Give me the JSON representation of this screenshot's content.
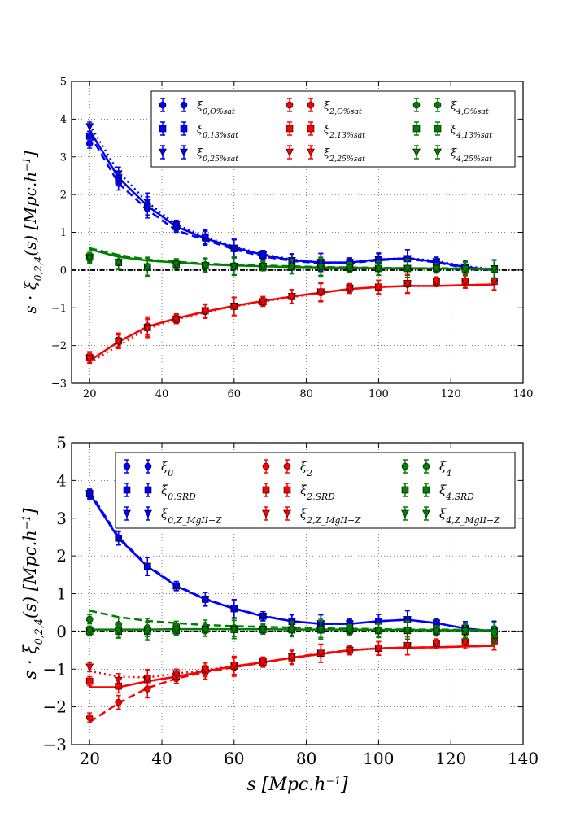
{
  "chart_data": [
    {
      "type": "line",
      "title": "",
      "xlabel": "",
      "ylabel_main": "s · ξ",
      "ylabel_sub": "0,2,4",
      "ylabel_rest": "(s) [Mpc.h",
      "ylabel_sup": "−1",
      "ylabel_end": "]",
      "xlim": [
        15,
        140
      ],
      "ylim": [
        -3,
        5
      ],
      "xticks": [
        20,
        40,
        60,
        80,
        100,
        120,
        140
      ],
      "yticks": [
        -3,
        -2,
        -1,
        0,
        1,
        2,
        3,
        4,
        5
      ],
      "xtick_labels": [
        "20",
        "40",
        "60",
        "80",
        "100",
        "120",
        "140"
      ],
      "ytick_labels": [
        "−3",
        "−2",
        "−1",
        "0",
        "1",
        "2",
        "3",
        "4",
        "5"
      ],
      "grid": true,
      "legend_position": "top-right",
      "x": [
        20,
        28,
        36,
        44,
        52,
        60,
        68,
        76,
        84,
        92,
        100,
        108,
        116,
        124,
        132
      ],
      "series": [
        {
          "name": "ξ",
          "sub": "0,O%sat",
          "color": "#0000ff",
          "marker": "circle",
          "linestyle": "solid",
          "errors": true,
          "values": [
            3.35,
            2.3,
            1.62,
            1.12,
            0.84,
            0.56,
            0.4,
            0.24,
            0.2,
            0.2,
            0.25,
            0.3,
            0.22,
            0.08,
            0.03
          ]
        },
        {
          "name": "ξ",
          "sub": "0,13%sat",
          "color": "#0000ff",
          "marker": "square",
          "linestyle": "dashed",
          "errors": true,
          "values": [
            3.55,
            2.42,
            1.7,
            1.15,
            0.86,
            0.57,
            0.39,
            0.25,
            0.2,
            0.2,
            0.27,
            0.3,
            0.22,
            0.08,
            0.03
          ]
        },
        {
          "name": "ξ",
          "sub": "0,25%sat",
          "color": "#0000ff",
          "marker": "triangle",
          "linestyle": "dotted",
          "errors": true,
          "values": [
            3.8,
            2.55,
            1.8,
            1.2,
            0.88,
            0.58,
            0.4,
            0.25,
            0.2,
            0.2,
            0.27,
            0.3,
            0.22,
            0.08,
            0.03
          ]
        },
        {
          "name": "ξ",
          "sub": "2,O%sat",
          "color": "#ff0000",
          "marker": "circle",
          "linestyle": "solid",
          "errors": true,
          "values": [
            -2.28,
            -1.85,
            -1.48,
            -1.28,
            -1.1,
            -0.97,
            -0.82,
            -0.7,
            -0.6,
            -0.5,
            -0.45,
            -0.38,
            -0.32,
            -0.28,
            -0.28
          ]
        },
        {
          "name": "ξ",
          "sub": "2,13%sat",
          "color": "#ff0000",
          "marker": "square",
          "linestyle": "dashed",
          "errors": true,
          "values": [
            -2.32,
            -1.88,
            -1.52,
            -1.3,
            -1.08,
            -0.96,
            -0.84,
            -0.7,
            -0.58,
            -0.48,
            -0.45,
            -0.36,
            -0.3,
            -0.3,
            -0.3
          ]
        },
        {
          "name": "ξ",
          "sub": "2,25%sat",
          "color": "#ff0000",
          "marker": "triangle",
          "linestyle": "dotted",
          "errors": true,
          "values": [
            -2.35,
            -1.9,
            -1.55,
            -1.3,
            -1.08,
            -0.96,
            -0.84,
            -0.7,
            -0.58,
            -0.48,
            -0.45,
            -0.36,
            -0.3,
            -0.3,
            -0.3
          ]
        },
        {
          "name": "ξ",
          "sub": "4,O%sat",
          "color": "#008000",
          "marker": "circle",
          "linestyle": "solid",
          "errors": true,
          "values": [
            0.3,
            0.22,
            0.1,
            0.18,
            0.14,
            0.12,
            0.12,
            0.1,
            0.1,
            0.08,
            0.05,
            0.05,
            0.05,
            0.04,
            0.02
          ]
        },
        {
          "name": "ξ",
          "sub": "4,13%sat",
          "color": "#008000",
          "marker": "square",
          "linestyle": "dashed",
          "errors": true,
          "values": [
            0.35,
            0.2,
            0.08,
            0.15,
            0.12,
            0.1,
            0.1,
            0.08,
            0.08,
            0.06,
            0.04,
            0.04,
            0.04,
            0.03,
            0.02
          ]
        },
        {
          "name": "ξ",
          "sub": "4,25%sat",
          "color": "#008000",
          "marker": "triangle",
          "linestyle": "dotted",
          "errors": true,
          "values": [
            0.32,
            0.2,
            0.08,
            0.15,
            0.12,
            0.1,
            0.1,
            0.08,
            0.08,
            0.06,
            0.04,
            0.04,
            0.04,
            0.03,
            0.02
          ]
        }
      ],
      "model_curves": [
        {
          "name": "ξ0 model solid",
          "color": "#0000ff",
          "linestyle": "solid",
          "values": [
            3.7,
            2.45,
            1.7,
            1.15,
            0.84,
            0.6,
            0.4,
            0.26,
            0.2,
            0.2,
            0.28,
            0.31,
            0.22,
            0.08,
            0.0
          ]
        },
        {
          "name": "ξ0 model dashed",
          "color": "#0000ff",
          "linestyle": "dashed",
          "values": [
            3.6,
            2.3,
            1.6,
            1.05,
            0.8,
            0.55,
            0.36,
            0.24,
            0.18,
            0.18,
            0.26,
            0.3,
            0.2,
            0.06,
            0.0
          ]
        },
        {
          "name": "ξ0 model dotted",
          "color": "#0000ff",
          "linestyle": "dotted",
          "values": [
            3.85,
            2.6,
            1.8,
            1.2,
            0.88,
            0.62,
            0.42,
            0.28,
            0.2,
            0.2,
            0.28,
            0.32,
            0.24,
            0.1,
            0.02
          ]
        },
        {
          "name": "ξ2 model solid",
          "color": "#ff0000",
          "linestyle": "solid",
          "values": [
            -2.4,
            -1.9,
            -1.5,
            -1.28,
            -1.1,
            -0.95,
            -0.82,
            -0.7,
            -0.6,
            -0.5,
            -0.45,
            -0.42,
            -0.42,
            -0.4,
            -0.38
          ]
        },
        {
          "name": "ξ2 model dotted",
          "color": "#ff0000",
          "linestyle": "dotted",
          "values": [
            -2.45,
            -2.0,
            -1.55,
            -1.3,
            -1.12,
            -0.96,
            -0.84,
            -0.72,
            -0.6,
            -0.5,
            -0.45,
            -0.42,
            -0.42,
            -0.4,
            -0.38
          ]
        },
        {
          "name": "ξ4 model solid",
          "color": "#008000",
          "linestyle": "solid",
          "values": [
            0.55,
            0.35,
            0.25,
            0.2,
            0.15,
            0.12,
            0.1,
            0.08,
            0.07,
            0.06,
            0.05,
            0.05,
            0.04,
            0.03,
            0.03
          ]
        },
        {
          "name": "ξ4 model dashed",
          "color": "#008000",
          "linestyle": "dashed",
          "values": [
            0.58,
            0.4,
            0.28,
            0.22,
            0.17,
            0.14,
            0.12,
            0.1,
            0.08,
            0.07,
            0.06,
            0.05,
            0.05,
            0.04,
            0.03
          ]
        }
      ],
      "zero_line": true
    },
    {
      "type": "line",
      "title": "",
      "xlabel_main": "s [Mpc.h",
      "xlabel_sup": "−1",
      "xlabel_end": "]",
      "ylabel_main": "s · ξ",
      "ylabel_sub": "0,2,4",
      "ylabel_rest": "(s) [Mpc.h",
      "ylabel_sup": "−1",
      "ylabel_end": "]",
      "xlim": [
        15,
        140
      ],
      "ylim": [
        -3,
        5
      ],
      "xticks": [
        20,
        40,
        60,
        80,
        100,
        120,
        140
      ],
      "yticks": [
        -3,
        -2,
        -1,
        0,
        1,
        2,
        3,
        4,
        5
      ],
      "xtick_labels": [
        "20",
        "40",
        "60",
        "80",
        "100",
        "120",
        "140"
      ],
      "ytick_labels": [
        "−3",
        "−2",
        "−1",
        "0",
        "1",
        "2",
        "3",
        "4",
        "5"
      ],
      "grid": true,
      "legend_position": "top-right",
      "x": [
        20,
        28,
        36,
        44,
        52,
        60,
        68,
        76,
        84,
        92,
        100,
        108,
        116,
        124,
        132
      ],
      "series": [
        {
          "name": "ξ",
          "sub": "0",
          "color": "#0000ff",
          "marker": "circle",
          "linestyle": "solid",
          "errors": true,
          "values": [
            3.62,
            2.48,
            1.72,
            1.2,
            0.85,
            0.6,
            0.4,
            0.26,
            0.2,
            0.2,
            0.27,
            0.31,
            0.22,
            0.08,
            0.03
          ]
        },
        {
          "name": "ξ",
          "sub": "0,SRD",
          "color": "#0000ff",
          "marker": "square",
          "linestyle": "dashed",
          "errors": true,
          "values": [
            3.65,
            2.47,
            1.72,
            1.2,
            0.85,
            0.6,
            0.4,
            0.26,
            0.2,
            0.2,
            0.27,
            0.31,
            0.22,
            0.08,
            0.03
          ]
        },
        {
          "name": "ξ",
          "sub": "0,Z_MgII−Z",
          "color": "#0000ff",
          "marker": "triangle",
          "linestyle": "dotted",
          "errors": true,
          "values": [
            3.65,
            2.47,
            1.72,
            1.2,
            0.85,
            0.6,
            0.4,
            0.26,
            0.2,
            0.2,
            0.27,
            0.31,
            0.22,
            0.08,
            0.03
          ]
        },
        {
          "name": "ξ",
          "sub": "2",
          "color": "#ff0000",
          "marker": "circle",
          "linestyle": "solid",
          "errors": true,
          "values": [
            -2.28,
            -1.88,
            -1.52,
            -1.25,
            -1.08,
            -0.95,
            -0.83,
            -0.68,
            -0.58,
            -0.5,
            -0.45,
            -0.38,
            -0.32,
            -0.28,
            -0.25
          ]
        },
        {
          "name": "ξ",
          "sub": "2,SRD",
          "color": "#ff0000",
          "marker": "square",
          "linestyle": "dashed",
          "errors": true,
          "values": [
            -1.32,
            -1.45,
            -1.28,
            -1.18,
            -1.02,
            -0.92,
            -0.82,
            -0.7,
            -0.58,
            -0.5,
            -0.45,
            -0.38,
            -0.32,
            -0.28,
            -0.25
          ]
        },
        {
          "name": "ξ",
          "sub": "2,Z_MgII−Z",
          "color": "#ff0000",
          "marker": "triangle",
          "linestyle": "dotted",
          "errors": true,
          "values": [
            -0.95,
            -1.3,
            -1.25,
            -1.12,
            -1.0,
            -0.9,
            -0.8,
            -0.68,
            -0.58,
            -0.5,
            -0.45,
            -0.38,
            -0.32,
            -0.28,
            -0.25
          ]
        },
        {
          "name": "ξ",
          "sub": "4",
          "color": "#008000",
          "marker": "circle",
          "linestyle": "solid",
          "errors": true,
          "values": [
            0.32,
            0.18,
            0.1,
            0.15,
            0.12,
            0.1,
            0.08,
            0.08,
            0.08,
            0.06,
            0.04,
            0.04,
            0.03,
            0.02,
            0.0
          ]
        },
        {
          "name": "ξ",
          "sub": "4,SRD",
          "color": "#008000",
          "marker": "square",
          "linestyle": "dashed",
          "errors": true,
          "values": [
            0.0,
            0.0,
            0.0,
            0.02,
            0.05,
            0.05,
            0.05,
            0.04,
            0.04,
            0.03,
            0.02,
            0.02,
            0.0,
            0.0,
            -0.1
          ]
        },
        {
          "name": "ξ",
          "sub": "4,Z_MgII−Z",
          "color": "#008000",
          "marker": "triangle",
          "linestyle": "dotted",
          "errors": true,
          "values": [
            0.02,
            0.02,
            0.02,
            0.04,
            0.05,
            0.05,
            0.05,
            0.04,
            0.04,
            0.03,
            0.02,
            0.02,
            0.0,
            0.0,
            -0.1
          ]
        }
      ],
      "model_curves": [
        {
          "name": "ξ0 model solid",
          "color": "#0000ff",
          "linestyle": "solid",
          "values": [
            3.65,
            2.47,
            1.72,
            1.2,
            0.85,
            0.6,
            0.4,
            0.27,
            0.2,
            0.2,
            0.27,
            0.31,
            0.22,
            0.08,
            0.0
          ]
        },
        {
          "name": "ξ0 model dashed",
          "color": "#0000ff",
          "linestyle": "dashed",
          "values": [
            3.7,
            2.5,
            1.74,
            1.22,
            0.86,
            0.61,
            0.41,
            0.27,
            0.2,
            0.2,
            0.27,
            0.31,
            0.22,
            0.08,
            0.0
          ]
        },
        {
          "name": "ξ2 model solid",
          "color": "#ff0000",
          "linestyle": "solid",
          "values": [
            -1.48,
            -1.48,
            -1.32,
            -1.2,
            -1.05,
            -0.93,
            -0.82,
            -0.7,
            -0.6,
            -0.5,
            -0.45,
            -0.43,
            -0.42,
            -0.4,
            -0.38
          ]
        },
        {
          "name": "ξ2 model dashed",
          "color": "#ff0000",
          "linestyle": "dashed",
          "values": [
            -2.4,
            -1.9,
            -1.5,
            -1.25,
            -1.08,
            -0.95,
            -0.83,
            -0.7,
            -0.58,
            -0.5,
            -0.45,
            -0.43,
            -0.42,
            -0.4,
            -0.38
          ]
        },
        {
          "name": "ξ2 model dotted",
          "color": "#ff0000",
          "linestyle": "dotted",
          "values": [
            -1.05,
            -1.2,
            -1.22,
            -1.12,
            -1.02,
            -0.92,
            -0.82,
            -0.7,
            -0.6,
            -0.5,
            -0.45,
            -0.43,
            -0.42,
            -0.4,
            -0.38
          ]
        },
        {
          "name": "ξ4 model solid",
          "color": "#008000",
          "linestyle": "solid",
          "values": [
            0.05,
            0.05,
            0.05,
            0.06,
            0.06,
            0.06,
            0.06,
            0.05,
            0.05,
            0.05,
            0.04,
            0.04,
            0.03,
            0.03,
            0.03
          ]
        },
        {
          "name": "ξ4 model dashed",
          "color": "#008000",
          "linestyle": "dashed",
          "values": [
            0.55,
            0.38,
            0.28,
            0.22,
            0.17,
            0.14,
            0.12,
            0.1,
            0.08,
            0.07,
            0.06,
            0.05,
            0.05,
            0.04,
            0.03
          ]
        }
      ],
      "zero_line": true
    }
  ]
}
